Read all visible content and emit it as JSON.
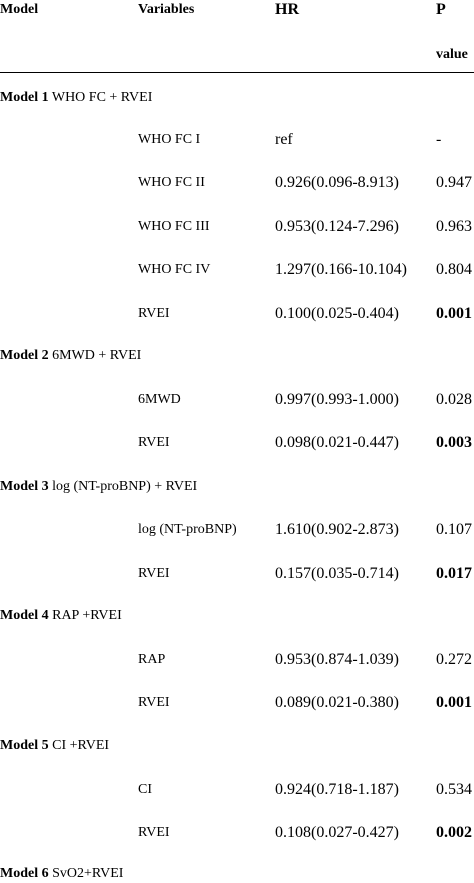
{
  "header": {
    "model": "Model",
    "variables": "Variables",
    "hr": "HR",
    "p_line1": "P",
    "p_line2": "value"
  },
  "models": [
    {
      "label_bold": "Model 1",
      "label_rest": " WHO FC + RVEI",
      "rows": [
        {
          "variable": "WHO FC I",
          "hr": "ref",
          "p": "-",
          "p_bold": false
        },
        {
          "variable": "WHO FC II",
          "hr": "0.926(0.096-8.913)",
          "p": "0.947",
          "p_bold": false
        },
        {
          "variable": "WHO FC III",
          "hr": "0.953(0.124-7.296)",
          "p": "0.963",
          "p_bold": false
        },
        {
          "variable": "WHO FC IV",
          "hr": "1.297(0.166-10.104)",
          "p": "0.804",
          "p_bold": false
        },
        {
          "variable": "RVEI",
          "hr": "0.100(0.025-0.404)",
          "p": "0.001",
          "p_bold": true
        }
      ]
    },
    {
      "label_bold": "Model 2",
      "label_rest": " 6MWD + RVEI",
      "rows": [
        {
          "variable": "6MWD",
          "hr": "0.997(0.993-1.000)",
          "p": "0.028",
          "p_bold": false
        },
        {
          "variable": "RVEI",
          "hr": "0.098(0.021-0.447)",
          "p": "0.003",
          "p_bold": true
        }
      ]
    },
    {
      "label_bold": "Model 3",
      "label_rest": " log (NT-proBNP) + RVEI",
      "rows": [
        {
          "variable": "log (NT-proBNP)",
          "hr": "1.610(0.902-2.873)",
          "p": "0.107",
          "p_bold": false
        },
        {
          "variable": "RVEI",
          "hr": "0.157(0.035-0.714)",
          "p": "0.017",
          "p_bold": true
        }
      ]
    },
    {
      "label_bold": "Model 4",
      "label_rest": " RAP +RVEI",
      "rows": [
        {
          "variable": "RAP",
          "hr": "0.953(0.874-1.039)",
          "p": "0.272",
          "p_bold": false
        },
        {
          "variable": "RVEI",
          "hr": "0.089(0.021-0.380)",
          "p": "0.001",
          "p_bold": true
        }
      ]
    },
    {
      "label_bold": "Model 5",
      "label_rest": " CI +RVEI",
      "rows": [
        {
          "variable": "CI",
          "hr": "0.924(0.718-1.187)",
          "p": "0.534",
          "p_bold": false
        },
        {
          "variable": "RVEI",
          "hr": "0.108(0.027-0.427)",
          "p": "0.002",
          "p_bold": true
        }
      ]
    },
    {
      "label_bold": "Model 6",
      "label_rest": " SvO2+RVEI",
      "rows": []
    }
  ]
}
